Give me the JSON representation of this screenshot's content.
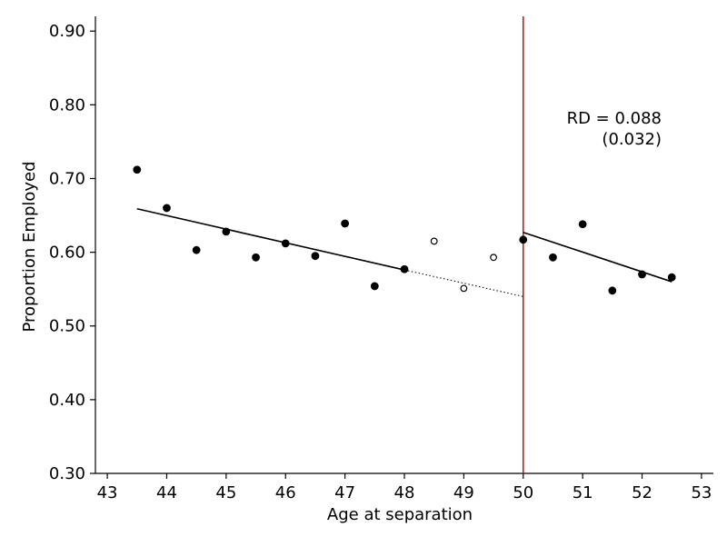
{
  "chart_data": {
    "type": "scatter",
    "xlabel": "Age at separation",
    "ylabel": "Proportion Employed",
    "xlim": [
      42.8,
      53.2
    ],
    "ylim": [
      0.3,
      0.92
    ],
    "x_ticks": [
      43,
      44,
      45,
      46,
      47,
      48,
      49,
      50,
      51,
      52,
      53
    ],
    "x_tick_labels": [
      "43",
      "44",
      "45",
      "46",
      "47",
      "48",
      "49",
      "50",
      "51",
      "52",
      "53"
    ],
    "y_ticks": [
      0.3,
      0.4,
      0.5,
      0.6,
      0.7,
      0.8,
      0.9
    ],
    "y_tick_labels": [
      "0.30",
      "0.40",
      "0.50",
      "0.60",
      "0.70",
      "0.80",
      "0.90"
    ],
    "grid": false,
    "series": [
      {
        "marker": "filled",
        "color": "#000000",
        "points": [
          {
            "x": 43.5,
            "y": 0.712
          },
          {
            "x": 44.0,
            "y": 0.66
          },
          {
            "x": 44.5,
            "y": 0.603
          },
          {
            "x": 45.0,
            "y": 0.628
          },
          {
            "x": 45.5,
            "y": 0.593
          },
          {
            "x": 46.0,
            "y": 0.612
          },
          {
            "x": 46.5,
            "y": 0.595
          },
          {
            "x": 47.0,
            "y": 0.639
          },
          {
            "x": 47.5,
            "y": 0.554
          },
          {
            "x": 48.0,
            "y": 0.577
          },
          {
            "x": 50.0,
            "y": 0.617
          },
          {
            "x": 50.5,
            "y": 0.593
          },
          {
            "x": 51.0,
            "y": 0.638
          },
          {
            "x": 51.5,
            "y": 0.548
          },
          {
            "x": 52.0,
            "y": 0.57
          },
          {
            "x": 52.5,
            "y": 0.566
          }
        ]
      },
      {
        "marker": "hollow",
        "color": "#000000",
        "points": [
          {
            "x": 48.5,
            "y": 0.615
          },
          {
            "x": 49.0,
            "y": 0.551
          },
          {
            "x": 49.5,
            "y": 0.593
          }
        ]
      }
    ],
    "fit_lines": [
      {
        "style": "solid",
        "color": "#000000",
        "x": [
          43.5,
          48.0
        ],
        "y": [
          0.659,
          0.576
        ]
      },
      {
        "style": "dotted",
        "color": "#000000",
        "x": [
          48.0,
          50.0
        ],
        "y": [
          0.576,
          0.54
        ]
      },
      {
        "style": "solid",
        "color": "#000000",
        "x": [
          50.0,
          52.5
        ],
        "y": [
          0.627,
          0.56
        ]
      }
    ],
    "cutoff": {
      "x": 50,
      "color": "#b22222"
    },
    "annotation": {
      "line1": "RD = 0.088",
      "line2": "(0.032)"
    }
  }
}
